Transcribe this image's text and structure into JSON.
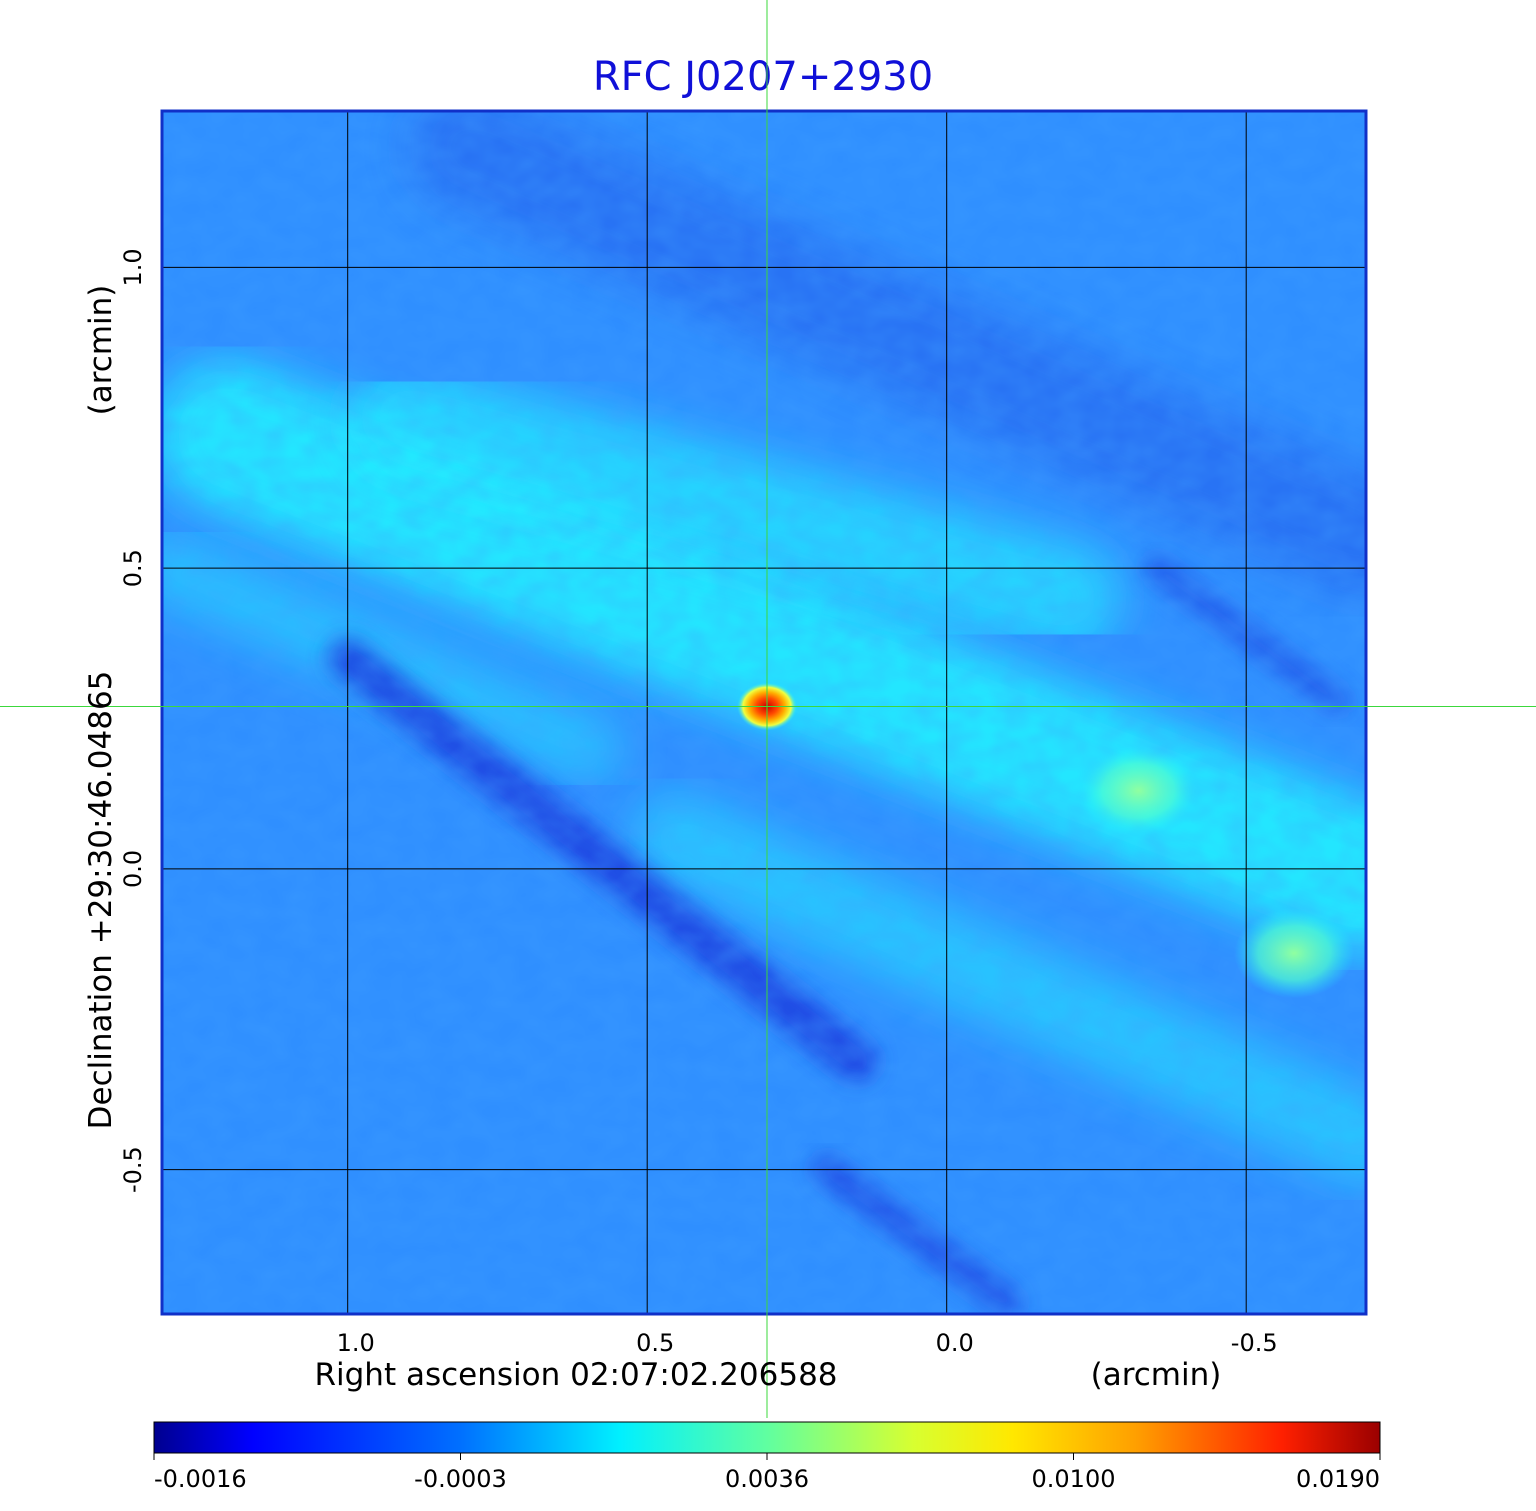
{
  "chart_data": {
    "type": "heatmap",
    "title": "RFC J0207+2930",
    "xlabel": "Right ascension  02:07:02.206588",
    "xunit": "(arcmin)",
    "ylabel": "Declination  +29:30:46.04865",
    "yunit": "(arcmin)",
    "x_ticks": [
      1.0,
      0.5,
      0.0,
      -0.5
    ],
    "x_tick_labels": [
      "1.0",
      "0.5",
      "0.0",
      "-0.5"
    ],
    "y_ticks": [
      1.0,
      0.5,
      0.0,
      -0.5
    ],
    "y_tick_labels": [
      "1.0",
      "0.5",
      "-0.5"
    ],
    "y_tick_label_zero": "0.0",
    "xlim": [
      1.31,
      -0.7
    ],
    "ylim": [
      -0.74,
      1.26
    ],
    "grid": true,
    "crosshair": {
      "x": 0.3,
      "y": 0.27
    },
    "peak": {
      "x": 0.3,
      "y": 0.27,
      "value": 0.019
    },
    "secondary_features": [
      {
        "x": -0.32,
        "y": 0.13,
        "value": 0.0036
      },
      {
        "x": -0.58,
        "y": -0.14,
        "value": 0.0036
      }
    ],
    "colorbar": {
      "ticks": [
        -0.0016,
        -0.0003,
        0.0036,
        0.01,
        0.019
      ],
      "tick_labels": [
        "-0.0016",
        "-0.0003",
        "0.0036",
        "0.0100",
        "0.0190"
      ],
      "colormap": "jet"
    },
    "colors": {
      "title": "#1010d8",
      "frame": "#1030c8",
      "grid": "#000000",
      "crosshair": "#3cd83c",
      "background_level": "#2f8fff",
      "stripe_bright": "#20f0ff",
      "stripe_dark": "#1a40e0"
    }
  }
}
